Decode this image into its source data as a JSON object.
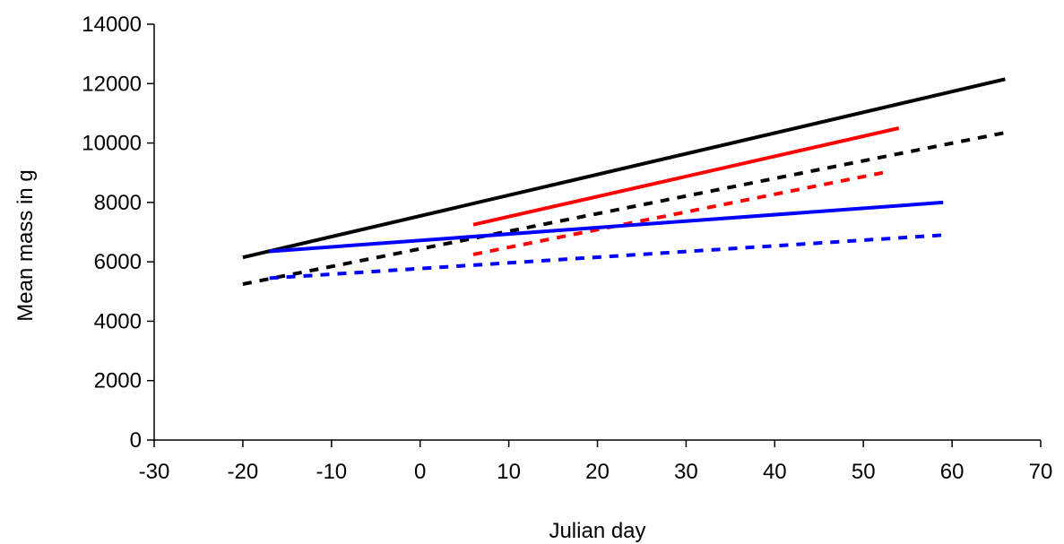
{
  "chart_data": {
    "type": "line",
    "title": "",
    "xlabel": "Julian day",
    "ylabel": "Mean mass in g",
    "xlim": [
      -30,
      70
    ],
    "ylim": [
      0,
      14000
    ],
    "xticks": [
      -30,
      -20,
      -10,
      0,
      10,
      20,
      30,
      40,
      50,
      60,
      70
    ],
    "yticks": [
      0,
      2000,
      4000,
      6000,
      8000,
      10000,
      12000,
      14000
    ],
    "grid": false,
    "legend": "none",
    "series": [
      {
        "color": "#000000",
        "style": "solid",
        "x": [
          -20,
          66
        ],
        "y": [
          6150,
          12150
        ]
      },
      {
        "color": "#000000",
        "style": "dashed",
        "x": [
          -20,
          66
        ],
        "y": [
          5250,
          10350
        ]
      },
      {
        "color": "#ff0000",
        "style": "solid",
        "x": [
          6,
          54
        ],
        "y": [
          7250,
          10500
        ]
      },
      {
        "color": "#ff0000",
        "style": "dashed",
        "x": [
          6,
          53
        ],
        "y": [
          6250,
          9050
        ]
      },
      {
        "color": "#0000ff",
        "style": "solid",
        "x": [
          -17,
          59
        ],
        "y": [
          6350,
          8000
        ]
      },
      {
        "color": "#0000ff",
        "style": "dashed",
        "x": [
          -17,
          59
        ],
        "y": [
          5450,
          6900
        ]
      }
    ]
  }
}
